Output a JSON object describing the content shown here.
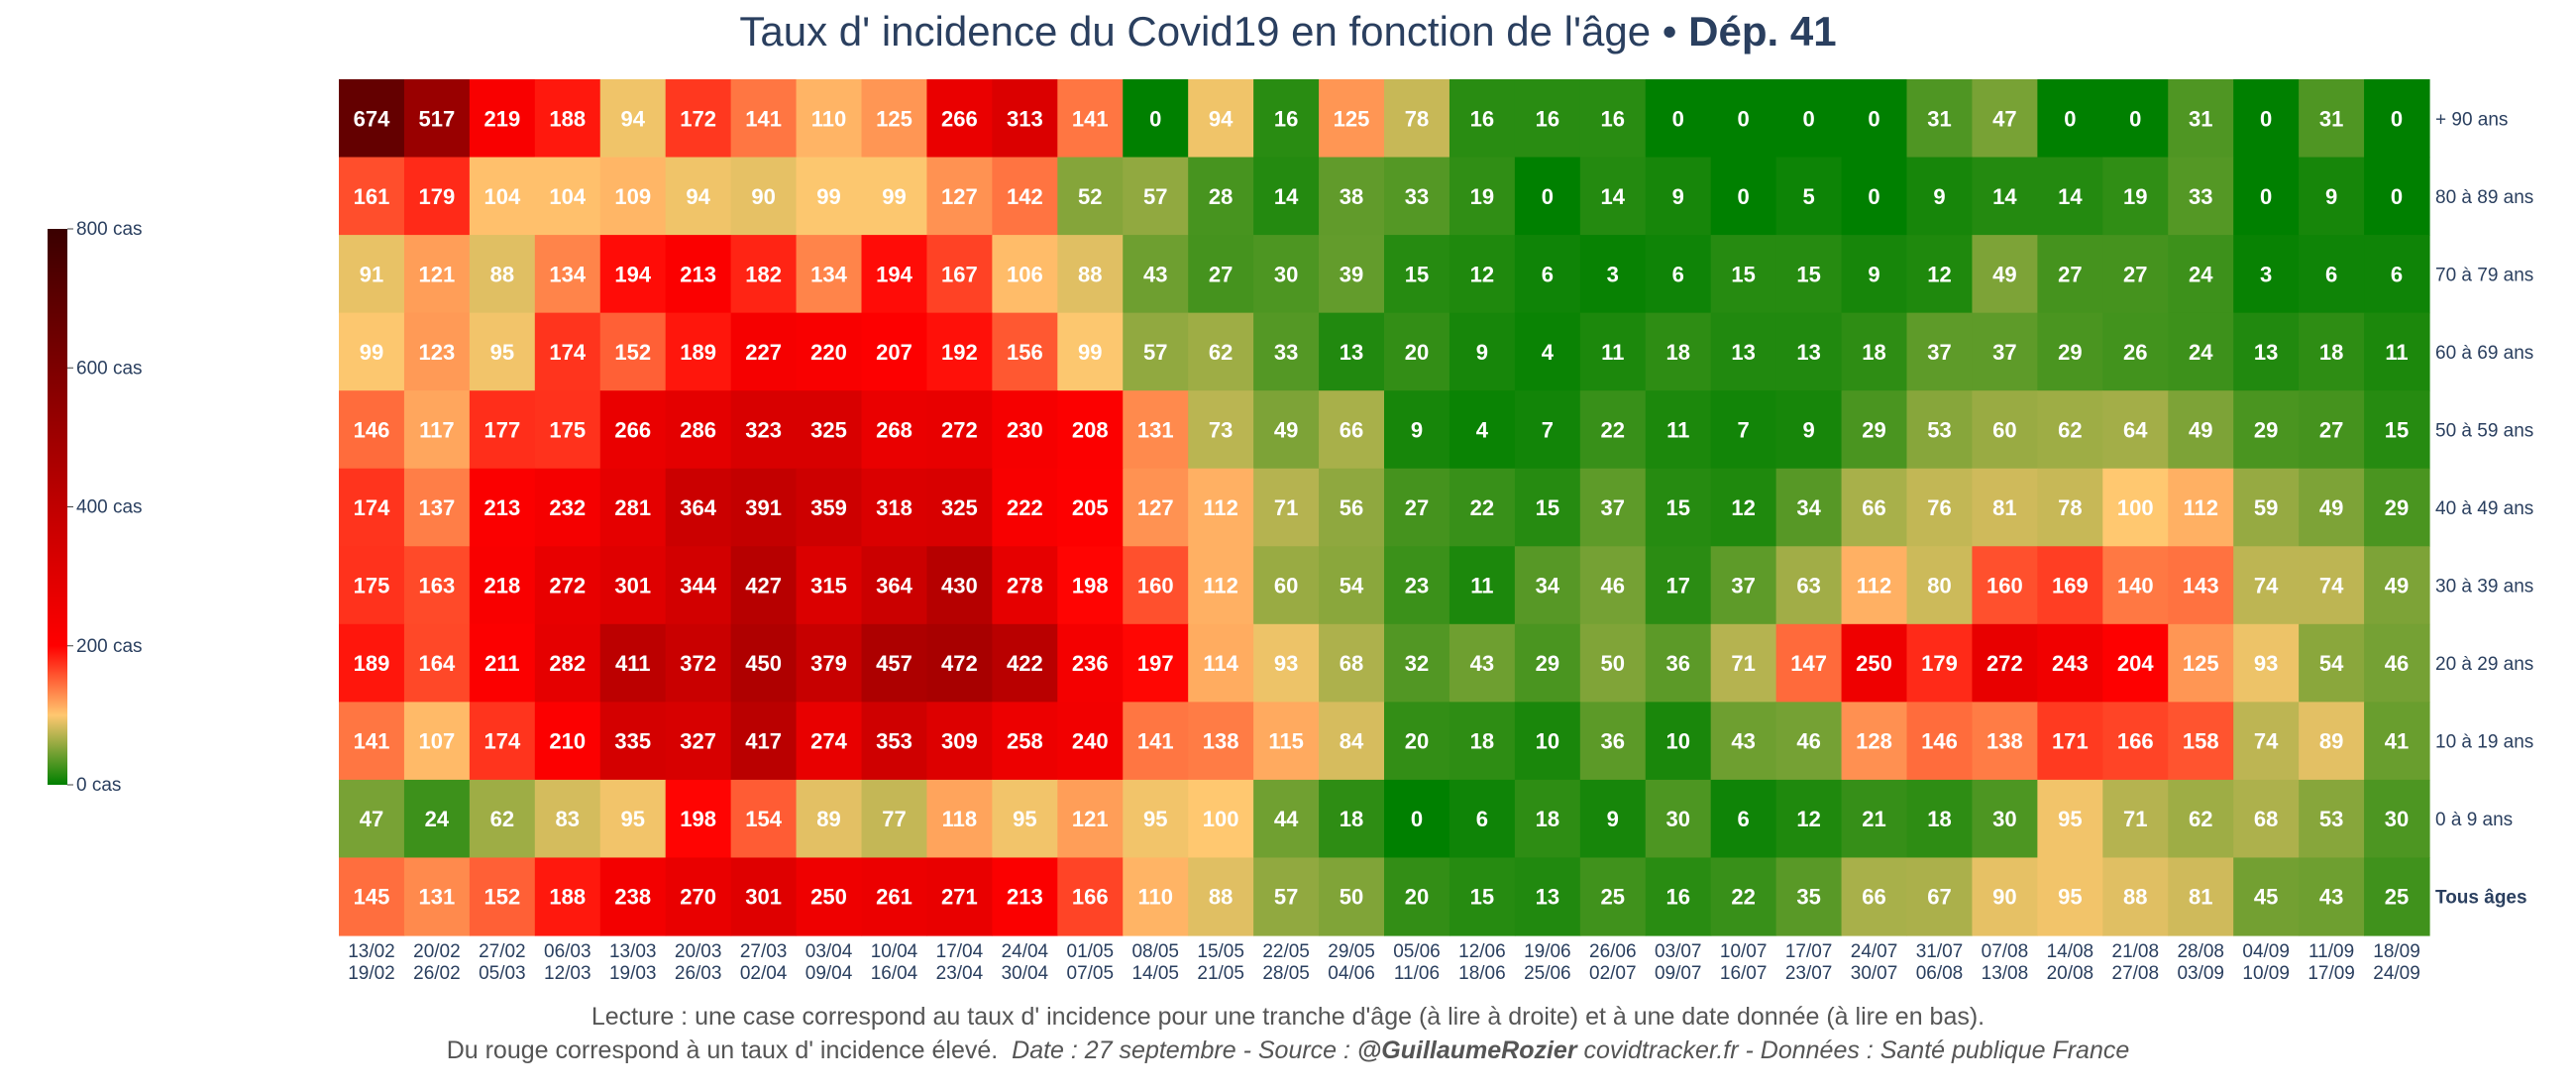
{
  "title": {
    "main": "Taux d' incidence du Covid19 en fonction de l'âge",
    "separator": " • ",
    "dept": "Dép. 41"
  },
  "colorbar": {
    "ticks": [
      {
        "value": 0,
        "label": "0 cas"
      },
      {
        "value": 200,
        "label": "200 cas"
      },
      {
        "value": 400,
        "label": "400 cas"
      },
      {
        "value": 600,
        "label": "600 cas"
      },
      {
        "value": 800,
        "label": "800 cas"
      }
    ],
    "stops": [
      {
        "v": 0,
        "color": "#008000"
      },
      {
        "v": 100,
        "color": "#ffc870"
      },
      {
        "v": 200,
        "color": "#ff0000"
      },
      {
        "v": 400,
        "color": "#c00000"
      },
      {
        "v": 800,
        "color": "#3a0000"
      }
    ]
  },
  "chart_data": {
    "type": "heatmap",
    "title": "Taux d' incidence du Covid19 en fonction de l'âge • Dép. 41",
    "x_labels": [
      [
        "13/02",
        "19/02"
      ],
      [
        "20/02",
        "26/02"
      ],
      [
        "27/02",
        "05/03"
      ],
      [
        "06/03",
        "12/03"
      ],
      [
        "13/03",
        "19/03"
      ],
      [
        "20/03",
        "26/03"
      ],
      [
        "27/03",
        "02/04"
      ],
      [
        "03/04",
        "09/04"
      ],
      [
        "10/04",
        "16/04"
      ],
      [
        "17/04",
        "23/04"
      ],
      [
        "24/04",
        "30/04"
      ],
      [
        "01/05",
        "07/05"
      ],
      [
        "08/05",
        "14/05"
      ],
      [
        "15/05",
        "21/05"
      ],
      [
        "22/05",
        "28/05"
      ],
      [
        "29/05",
        "04/06"
      ],
      [
        "05/06",
        "11/06"
      ],
      [
        "12/06",
        "18/06"
      ],
      [
        "19/06",
        "25/06"
      ],
      [
        "26/06",
        "02/07"
      ],
      [
        "03/07",
        "09/07"
      ],
      [
        "10/07",
        "16/07"
      ],
      [
        "17/07",
        "23/07"
      ],
      [
        "24/07",
        "30/07"
      ],
      [
        "31/07",
        "06/08"
      ],
      [
        "07/08",
        "13/08"
      ],
      [
        "14/08",
        "20/08"
      ],
      [
        "21/08",
        "27/08"
      ],
      [
        "28/08",
        "03/09"
      ],
      [
        "04/09",
        "10/09"
      ],
      [
        "11/09",
        "17/09"
      ],
      [
        "18/09",
        "24/09"
      ]
    ],
    "y_labels": [
      "+ 90 ans",
      "80 à 89 ans",
      "70 à 79 ans",
      "60 à 69 ans",
      "50 à 59 ans",
      "40 à 49 ans",
      "30 à 39 ans",
      "20 à 29 ans",
      "10 à 19 ans",
      "0 à 9 ans",
      "Tous âges"
    ],
    "values": [
      [
        674,
        517,
        219,
        188,
        94,
        172,
        141,
        110,
        125,
        266,
        313,
        141,
        0,
        94,
        16,
        125,
        78,
        16,
        16,
        16,
        0,
        0,
        0,
        0,
        31,
        47,
        0,
        0,
        31,
        0,
        31,
        0
      ],
      [
        161,
        179,
        104,
        104,
        109,
        94,
        90,
        99,
        99,
        127,
        142,
        52,
        57,
        28,
        14,
        38,
        33,
        19,
        0,
        14,
        9,
        0,
        5,
        0,
        9,
        14,
        14,
        19,
        33,
        0,
        9,
        0
      ],
      [
        91,
        121,
        88,
        134,
        194,
        213,
        182,
        134,
        194,
        167,
        106,
        88,
        43,
        27,
        30,
        39,
        15,
        12,
        6,
        3,
        6,
        15,
        15,
        9,
        12,
        49,
        27,
        27,
        24,
        3,
        6,
        6
      ],
      [
        99,
        123,
        95,
        174,
        152,
        189,
        227,
        220,
        207,
        192,
        156,
        99,
        57,
        62,
        33,
        13,
        20,
        9,
        4,
        11,
        18,
        13,
        13,
        18,
        37,
        37,
        29,
        26,
        24,
        13,
        18,
        11
      ],
      [
        146,
        117,
        177,
        175,
        266,
        286,
        323,
        325,
        268,
        272,
        230,
        208,
        131,
        73,
        49,
        66,
        9,
        4,
        7,
        22,
        11,
        7,
        9,
        29,
        53,
        60,
        62,
        64,
        49,
        29,
        27,
        15
      ],
      [
        174,
        137,
        213,
        232,
        281,
        364,
        391,
        359,
        318,
        325,
        222,
        205,
        127,
        112,
        71,
        56,
        27,
        22,
        15,
        37,
        15,
        12,
        34,
        66,
        76,
        81,
        78,
        100,
        112,
        59,
        49,
        29
      ],
      [
        175,
        163,
        218,
        272,
        301,
        344,
        427,
        315,
        364,
        430,
        278,
        198,
        160,
        112,
        60,
        54,
        23,
        11,
        34,
        46,
        17,
        37,
        63,
        112,
        80,
        160,
        169,
        140,
        143,
        74,
        74,
        49
      ],
      [
        189,
        164,
        211,
        282,
        411,
        372,
        450,
        379,
        457,
        472,
        422,
        236,
        197,
        114,
        93,
        68,
        32,
        43,
        29,
        50,
        36,
        71,
        147,
        250,
        179,
        272,
        243,
        204,
        125,
        93,
        54,
        46
      ],
      [
        141,
        107,
        174,
        210,
        335,
        327,
        417,
        274,
        353,
        309,
        258,
        240,
        141,
        138,
        115,
        84,
        20,
        18,
        10,
        36,
        10,
        43,
        46,
        128,
        146,
        138,
        171,
        166,
        158,
        74,
        89,
        41
      ],
      [
        47,
        24,
        62,
        83,
        95,
        198,
        154,
        89,
        77,
        118,
        95,
        121,
        95,
        100,
        44,
        18,
        0,
        6,
        18,
        9,
        30,
        6,
        12,
        21,
        18,
        30,
        95,
        71,
        62,
        68,
        53,
        30
      ],
      [
        145,
        131,
        152,
        188,
        238,
        270,
        301,
        250,
        261,
        271,
        213,
        166,
        110,
        88,
        57,
        50,
        20,
        15,
        13,
        25,
        16,
        22,
        35,
        66,
        67,
        90,
        95,
        88,
        81,
        45,
        43,
        25
      ]
    ],
    "zlim": [
      0,
      800
    ],
    "colorbar_label": "cas"
  },
  "footer": {
    "line1": "Lecture : une case correspond au taux d' incidence pour une tranche d'âge (à lire à droite) et à une date donnée (à lire en bas).",
    "line2_plain": "Du rouge correspond à un taux d' incidence élevé.",
    "line2_date": "Date : 27 septembre - Source : ",
    "line2_author": "@GuillaumeRozier",
    "line2_rest": " covidtracker.fr - Données : Santé publique France"
  }
}
